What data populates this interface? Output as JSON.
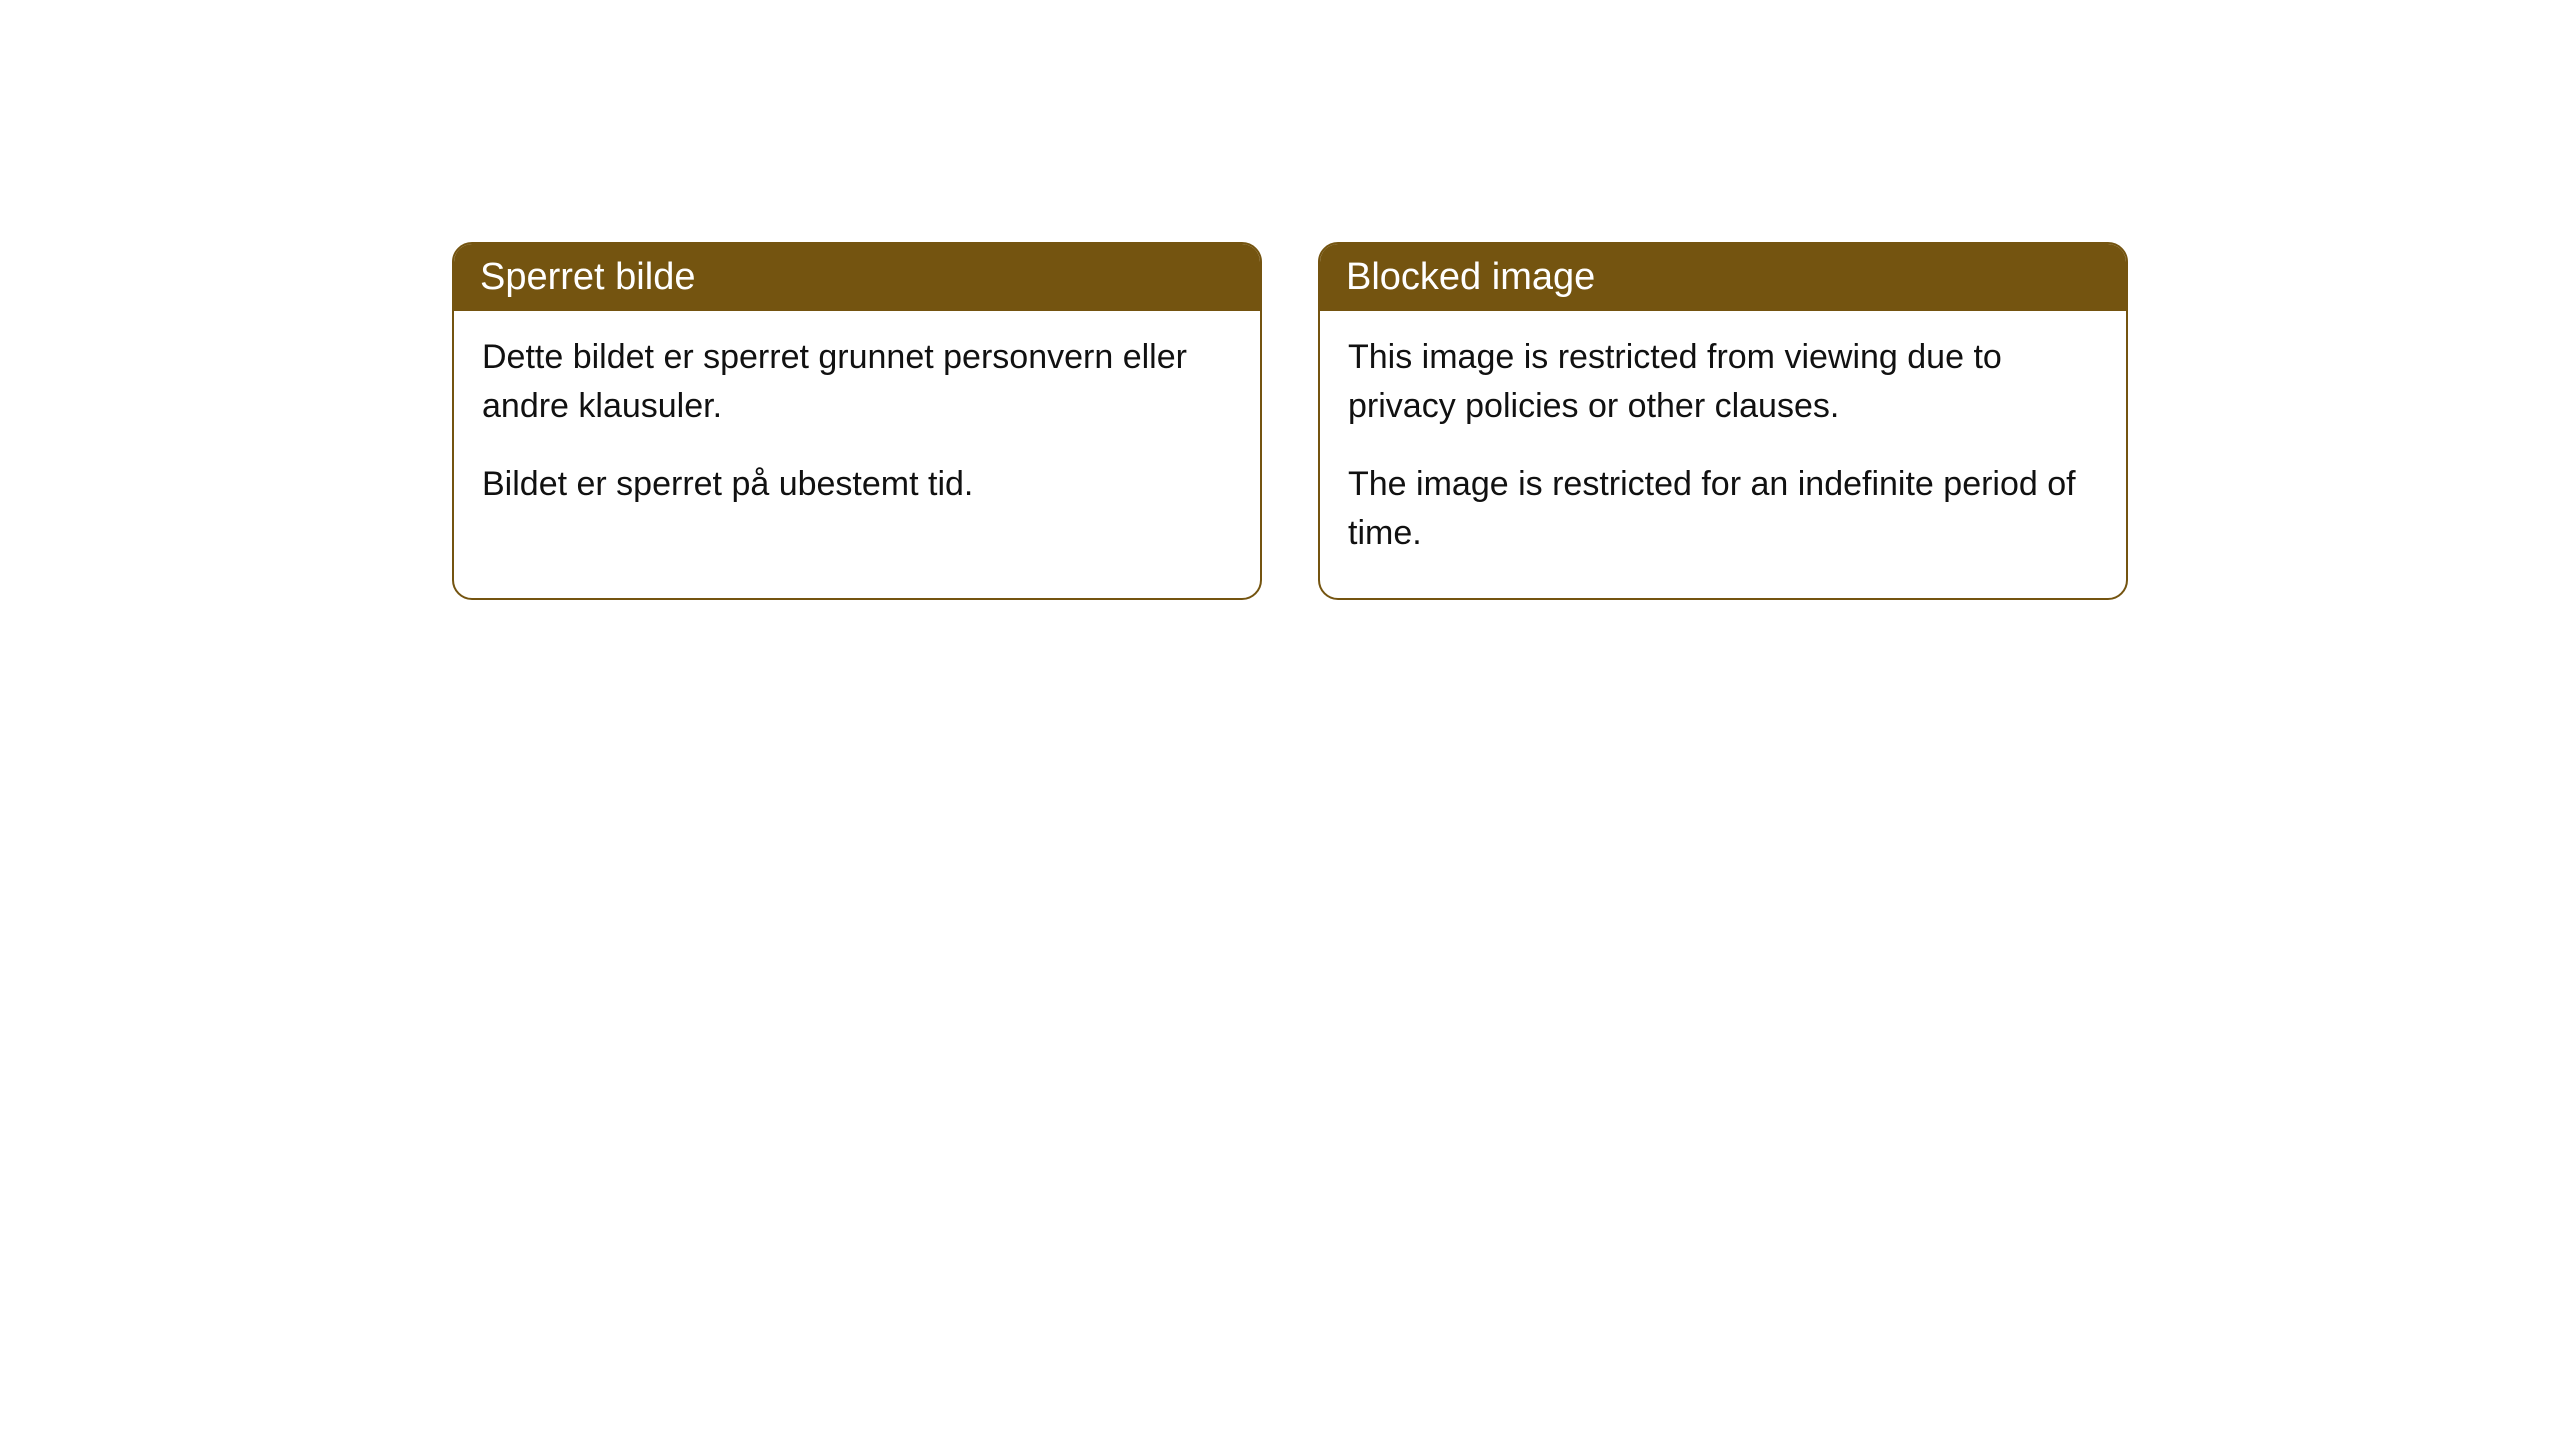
{
  "cards": [
    {
      "title": "Sperret bilde",
      "paragraph1": "Dette bildet er sperret grunnet personvern eller andre klausuler.",
      "paragraph2": "Bildet er sperret på ubestemt tid."
    },
    {
      "title": "Blocked image",
      "paragraph1": "This image is restricted from viewing due to privacy policies or other clauses.",
      "paragraph2": "The image is restricted for an indefinite period of time."
    }
  ],
  "styling": {
    "header_background": "#745410",
    "header_text_color": "#ffffff",
    "border_color": "#745410",
    "body_background": "#ffffff",
    "body_text_color": "#111111",
    "border_radius": 20,
    "header_fontsize": 38,
    "body_fontsize": 34
  }
}
